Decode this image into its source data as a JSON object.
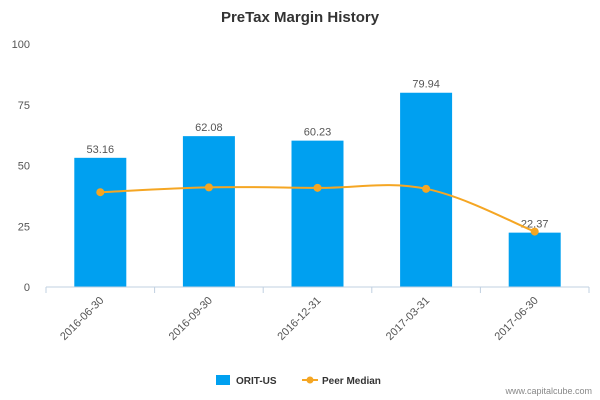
{
  "chart_data": {
    "type": "bar",
    "title": "PreTax Margin History",
    "categories": [
      "2016-06-30",
      "2016-09-30",
      "2016-12-31",
      "2017-03-31",
      "2017-06-30"
    ],
    "ylim": [
      0,
      100
    ],
    "yticks": [
      "0",
      "25",
      "50",
      "75",
      "100"
    ],
    "grid": false,
    "legend_position": "bottom",
    "series": [
      {
        "name": "ORIT-US",
        "type": "bar",
        "color": "#00a0f0",
        "values": [
          53.16,
          62.08,
          60.23,
          79.94,
          22.37
        ],
        "labels": [
          "53.16",
          "62.08",
          "60.23",
          "79.94",
          "22.37"
        ]
      },
      {
        "name": "Peer Median",
        "type": "line",
        "color": "#f5a623",
        "values": [
          39.0,
          41.0,
          40.8,
          40.4,
          22.8
        ]
      }
    ]
  },
  "footer": {
    "watermark": "www.capitalcube.com"
  }
}
